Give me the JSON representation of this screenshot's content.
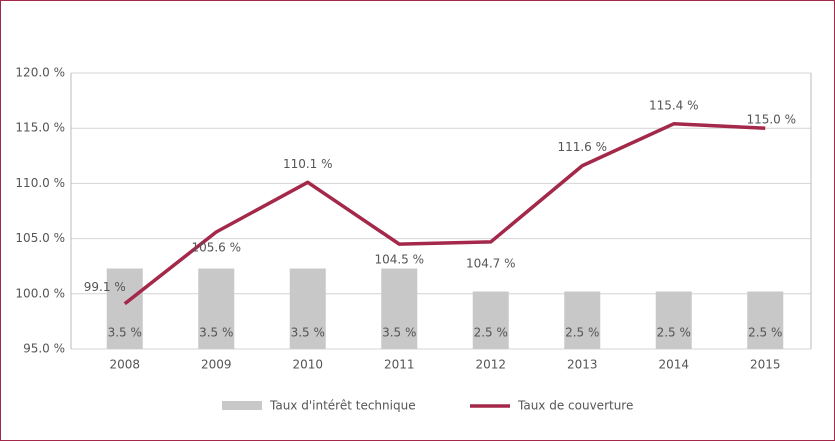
{
  "chart_data": {
    "type": "bar-line",
    "categories": [
      "2008",
      "2009",
      "2010",
      "2011",
      "2012",
      "2013",
      "2014",
      "2015"
    ],
    "series": [
      {
        "name": "Taux d'intérêt technique",
        "type": "bar",
        "axis": "y2",
        "color": "#c8c8c8",
        "values": [
          3.5,
          3.5,
          3.5,
          3.5,
          2.5,
          2.5,
          2.5,
          2.5
        ],
        "value_labels": [
          "3.5 %",
          "3.5 %",
          "3.5 %",
          "3.5 %",
          "2.5 %",
          "2.5 %",
          "2.5 %",
          "2.5 %"
        ]
      },
      {
        "name": "Taux de couverture",
        "type": "line",
        "color": "#a3284a",
        "values": [
          99.1,
          105.6,
          110.1,
          104.5,
          104.7,
          111.6,
          115.4,
          115.0
        ],
        "value_labels": [
          "99.1 %",
          "105.6 %",
          "110.1 %",
          "104.5 %",
          "104.7 %",
          "111.6 %",
          "115.4 %",
          "115.0 %"
        ]
      }
    ],
    "ylim": [
      95,
      120
    ],
    "yticks": [
      {
        "value": 95,
        "label": "95.0 %"
      },
      {
        "value": 100,
        "label": "100.0 %"
      },
      {
        "value": 105,
        "label": "105.0 %"
      },
      {
        "value": 110,
        "label": "110.0 %"
      },
      {
        "value": 115,
        "label": "115.0 %"
      },
      {
        "value": 120,
        "label": "120.0 %"
      }
    ],
    "y2lim": [
      0,
      12
    ],
    "grid": true,
    "legend": "bottom"
  }
}
